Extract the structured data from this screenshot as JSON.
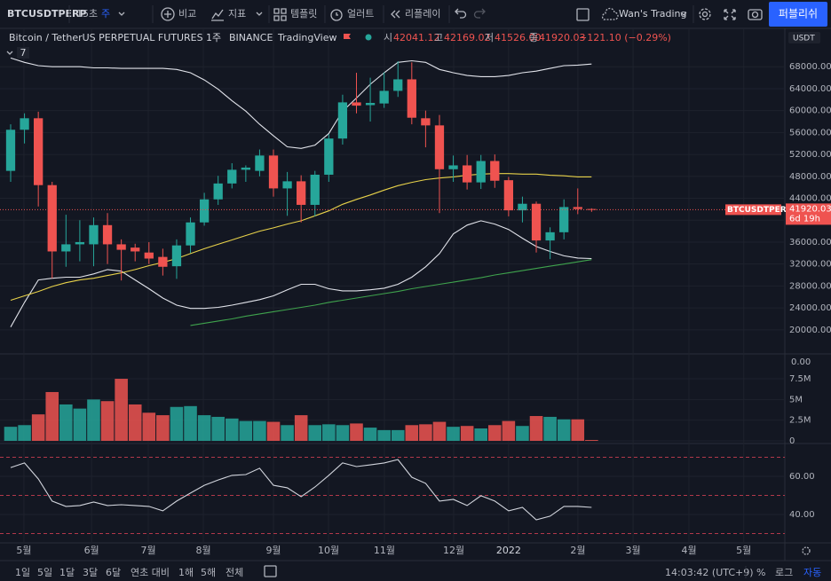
{
  "toolbar": {
    "symbol": "BTCUSDTPERP",
    "seconds": "15초",
    "interval": "주",
    "compare": "비교",
    "indicators": "지표",
    "templates": "템플릿",
    "alert": "얼러트",
    "replay": "리플레이",
    "layout": "Wan's Trading",
    "publish": "퍼블리쉬"
  },
  "legend": {
    "title": "Bitcoin / TetherUS PERPETUAL FUTURES",
    "interval": "1주",
    "exchange": "BINANCE",
    "source": "TradingView",
    "o_label": "시",
    "o": "42041.12",
    "h_label": "고",
    "h": "42169.02",
    "l_label": "저",
    "l": "41526.00",
    "c_label": "종",
    "c": "41920.03",
    "change": "−121.10 (−0.29%)",
    "indicator": "7"
  },
  "chart_data": {
    "type": "candlestick",
    "currency": "USDT",
    "up_color": "#26a69a",
    "down_color": "#ef5350",
    "grid": true,
    "xlim": [
      -0.77,
      55.97
    ],
    "xticks": [
      {
        "value": 0.96,
        "label": "5월"
      },
      {
        "value": 5.85,
        "label": "6월"
      },
      {
        "value": 9.95,
        "label": "7월"
      },
      {
        "value": 13.93,
        "label": "8월"
      },
      {
        "value": 19.0,
        "label": "9월"
      },
      {
        "value": 22.98,
        "label": "10월"
      },
      {
        "value": 27.02,
        "label": "11월"
      },
      {
        "value": 32.03,
        "label": "12월"
      },
      {
        "value": 36.0,
        "label": "2022"
      },
      {
        "value": 41.01,
        "label": "2월"
      },
      {
        "value": 45.0,
        "label": "3월"
      },
      {
        "value": 49.04,
        "label": "4월"
      },
      {
        "value": 53.0,
        "label": "5월"
      }
    ],
    "ylim": [
      15600,
      75000
    ],
    "yticks": [
      {
        "value": 20000,
        "label": "20000.00"
      },
      {
        "value": 24000,
        "label": "24000.00"
      },
      {
        "value": 28000,
        "label": "28000.00"
      },
      {
        "value": 32000,
        "label": "32000.00"
      },
      {
        "value": 36000,
        "label": "36000.00"
      },
      {
        "value": 40000,
        "label": "40000.00"
      },
      {
        "value": 44000,
        "label": "44000.00"
      },
      {
        "value": 48000,
        "label": "48000.00"
      },
      {
        "value": 52000,
        "label": "52000.00"
      },
      {
        "value": 56000,
        "label": "56000.00"
      },
      {
        "value": 60000,
        "label": "60000.00"
      },
      {
        "value": 64000,
        "label": "64000.00"
      },
      {
        "value": 68000,
        "label": "68000.00"
      }
    ],
    "candles": {
      "open": [
        49000,
        56500,
        58600,
        46400,
        34300,
        35600,
        35600,
        39100,
        35600,
        35000,
        34100,
        33300,
        31600,
        35400,
        39600,
        43800,
        46700,
        49200,
        49000,
        51800,
        45800,
        47100,
        42800,
        48300,
        54900,
        61500,
        61000,
        61300,
        63600,
        65700,
        58600,
        57300,
        49300,
        50000,
        46900,
        50800,
        47300,
        41800,
        43000,
        36300,
        37800,
        42400,
        42041.12
      ],
      "high": [
        57500,
        59500,
        59800,
        47000,
        41000,
        40000,
        40500,
        41300,
        36500,
        35700,
        36000,
        34800,
        36500,
        40500,
        45000,
        48100,
        50400,
        50000,
        52900,
        52900,
        48800,
        48200,
        49000,
        55700,
        62900,
        66900,
        66000,
        67000,
        69000,
        68800,
        60000,
        59200,
        51800,
        51900,
        51900,
        52000,
        47900,
        44300,
        43400,
        38700,
        43800,
        45800,
        42169.02
      ],
      "low": [
        47000,
        54000,
        42500,
        29400,
        31500,
        32500,
        31600,
        32000,
        29000,
        32500,
        32000,
        29900,
        29300,
        34000,
        39000,
        42800,
        45800,
        47000,
        48000,
        44300,
        40800,
        39600,
        40700,
        47000,
        53800,
        59500,
        58000,
        60500,
        62500,
        57500,
        53300,
        41300,
        47000,
        45600,
        45700,
        45900,
        40700,
        39600,
        34100,
        32900,
        36500,
        41100,
        41526
      ],
      "close": [
        56500,
        58600,
        46400,
        34300,
        35600,
        36000,
        39100,
        35600,
        34600,
        34300,
        33000,
        31500,
        35400,
        39600,
        43800,
        46700,
        49200,
        49600,
        51800,
        45800,
        47100,
        42800,
        48300,
        54900,
        61500,
        60900,
        61400,
        63600,
        65700,
        58700,
        57300,
        49300,
        50000,
        46900,
        50800,
        47200,
        41800,
        43000,
        36300,
        37800,
        42400,
        42040,
        41920.03
      ]
    },
    "overlays": [
      {
        "color": "#e1e3ea",
        "values": [
          69600,
          68800,
          68200,
          68000,
          68000,
          68000,
          67800,
          67800,
          67700,
          67700,
          67700,
          67700,
          67500,
          66900,
          65600,
          63900,
          61800,
          59900,
          57500,
          55400,
          53400,
          53100,
          53700,
          55800,
          59900,
          62300,
          64800,
          66900,
          68800,
          69100,
          68800,
          67500,
          66900,
          66400,
          66200,
          66200,
          66400,
          66900,
          67200,
          67700,
          68200,
          68300,
          68500
        ]
      },
      {
        "color": "#e1e3ea",
        "values": [
          20500,
          25000,
          29100,
          29400,
          29600,
          29600,
          30200,
          31000,
          30700,
          29100,
          27500,
          25800,
          24500,
          23900,
          23900,
          24100,
          24500,
          25000,
          25500,
          26200,
          27300,
          28300,
          28300,
          27500,
          27100,
          27100,
          27300,
          27600,
          28300,
          29600,
          31500,
          33900,
          37500,
          39100,
          39900,
          39300,
          38300,
          36700,
          35200,
          34300,
          33500,
          33100,
          33000
        ]
      },
      {
        "color": "#e8d24a",
        "values": [
          25400,
          26200,
          27000,
          27900,
          28600,
          29100,
          29400,
          29900,
          30400,
          31000,
          31700,
          32300,
          33000,
          33900,
          34800,
          35600,
          36400,
          37200,
          38000,
          38600,
          39300,
          39900,
          40800,
          41700,
          42900,
          43800,
          44600,
          45500,
          46300,
          46900,
          47400,
          47700,
          47900,
          48200,
          48400,
          48500,
          48500,
          48400,
          48400,
          48200,
          48100,
          47900,
          47900
        ]
      },
      {
        "color": "#3fa34d",
        "values": [
          null,
          null,
          null,
          null,
          null,
          null,
          null,
          null,
          null,
          null,
          null,
          null,
          null,
          20800,
          21200,
          21600,
          22000,
          22500,
          22900,
          23300,
          23700,
          24100,
          24500,
          25000,
          25400,
          25800,
          26200,
          26600,
          27000,
          27500,
          27900,
          28300,
          28700,
          29100,
          29500,
          30000,
          30400,
          30800,
          31200,
          31600,
          32000,
          32400,
          32800
        ]
      }
    ],
    "price_tag": {
      "symbol": "BTCUSDTPERP",
      "countdown": "6d 19h"
    },
    "volume_pane": {
      "top_label": "0.00",
      "ylim": [
        0,
        10400000
      ],
      "yticks": [
        0,
        {
          "value": 2500000,
          "label": "2.5M"
        },
        {
          "value": 5000000,
          "label": "5M"
        },
        {
          "value": 7500000,
          "label": "7.5M"
        }
      ],
      "values": [
        1700000,
        1900000,
        3200000,
        5900000,
        4400000,
        3900000,
        5000000,
        4800000,
        7500000,
        4400000,
        3400000,
        3100000,
        4100000,
        4200000,
        3100000,
        2900000,
        2700000,
        2400000,
        2400000,
        2300000,
        1900000,
        3100000,
        1900000,
        2000000,
        1900000,
        2100000,
        1600000,
        1300000,
        1300000,
        1900000,
        2000000,
        2300000,
        1700000,
        1800000,
        1500000,
        1900000,
        2400000,
        1800000,
        3000000,
        2900000,
        2600000,
        2600000,
        100000
      ]
    },
    "rsi_pane": {
      "color": "#d1d4dc",
      "level_color": "#b2384a",
      "ylim": [
        25.1,
        77.2
      ],
      "levels": [
        70,
        50,
        30
      ],
      "yticks": [
        {
          "value": 40,
          "label": "40.00"
        },
        {
          "value": 60,
          "label": "60.00"
        }
      ],
      "values": [
        64.6,
        67,
        58.6,
        47,
        44.2,
        44.7,
        46.5,
        44.7,
        45.1,
        44.7,
        44.2,
        41.9,
        47,
        51.2,
        55.3,
        58.1,
        60.5,
        60.9,
        64.2,
        55.3,
        54,
        49.3,
        54.4,
        60.5,
        67,
        65.1,
        66,
        67,
        68.8,
        59.5,
        56.3,
        47,
        47.9,
        44.7,
        49.8,
        47,
        41.9,
        43.7,
        37.2,
        39.1,
        44.2,
        44.2,
        43.7
      ]
    }
  },
  "bottom_bar": {
    "ranges": [
      "1일",
      "5일",
      "1달",
      "3달",
      "6달",
      "연초 대비",
      "1해",
      "5해",
      "전체"
    ],
    "clock": "14:03:42 (UTC+9)",
    "percent": "%",
    "log": "로그",
    "auto": "자동"
  }
}
